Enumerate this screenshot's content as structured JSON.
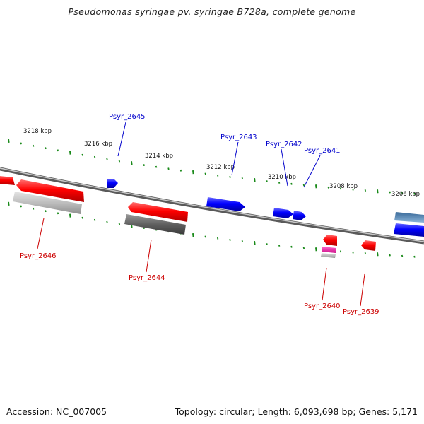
{
  "title": "Pseudomonas syringae pv. syringae B728a, complete genome",
  "footer": {
    "accession": "Accession: NC_007005",
    "summary": "Topology: circular; Length: 6,093,698 bp; Genes: 5,171"
  },
  "scale_labels": [
    "3218 kbp",
    "3216 kbp",
    "3214 kbp",
    "3212 kbp",
    "3210 kbp",
    "3208 kbp",
    "3206 kbp"
  ],
  "genes": [
    {
      "name": "Psyr_2646",
      "strand": "reverse",
      "label_color": "#cc0000",
      "color": "#ff0000"
    },
    {
      "name": "Psyr_2645",
      "strand": "forward",
      "label_color": "#0000cc",
      "color": "#0000ff"
    },
    {
      "name": "Psyr_2644",
      "strand": "reverse",
      "label_color": "#cc0000",
      "color": "#ff0000"
    },
    {
      "name": "Psyr_2643",
      "strand": "forward",
      "label_color": "#0000cc",
      "color": "#0000ff"
    },
    {
      "name": "Psyr_2642",
      "strand": "forward",
      "label_color": "#0000cc",
      "color": "#0000ff"
    },
    {
      "name": "Psyr_2641",
      "strand": "forward",
      "label_color": "#0000cc",
      "color": "#0000ff"
    },
    {
      "name": "Psyr_2640",
      "strand": "reverse",
      "label_color": "#cc0000",
      "color": "#ff0000"
    },
    {
      "name": "Psyr_2639",
      "strand": "reverse",
      "label_color": "#cc0000",
      "color": "#ff0000"
    }
  ],
  "colors": {
    "tick": "#1a8a1a",
    "backbone": "#888888",
    "forward": "#0000ff",
    "reverse": "#ff0000",
    "gray_feature": "#666666",
    "light_gray_feature": "#bbbbbb",
    "pink_feature": "#ee2299",
    "steel_blue_feature": "#4a7fb0"
  }
}
